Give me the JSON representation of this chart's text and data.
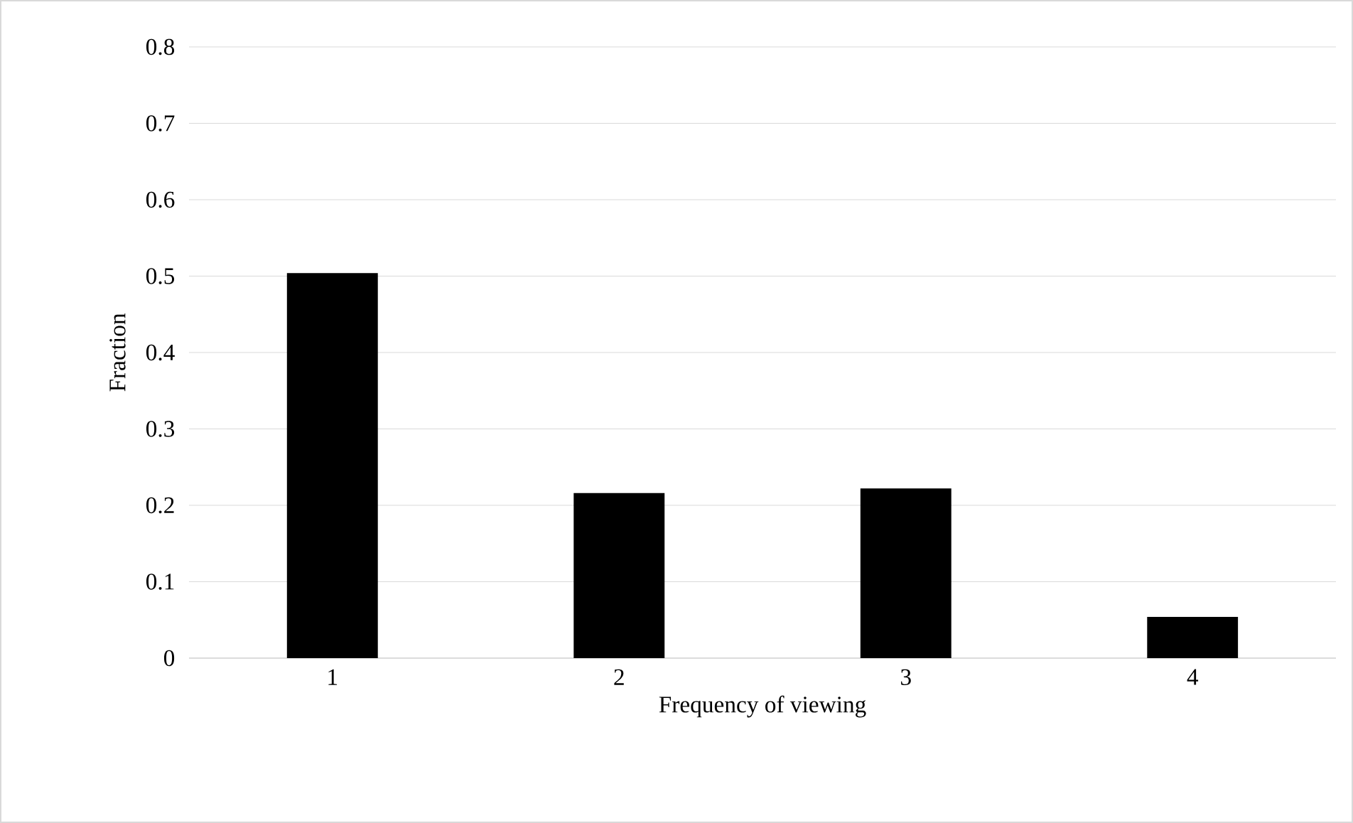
{
  "chart_data": {
    "type": "bar",
    "xlabel": "Frequency of viewing",
    "ylabel": "Fraction",
    "categories": [
      "1",
      "2",
      "3",
      "4"
    ],
    "values": [
      0.504,
      0.216,
      0.222,
      0.054
    ],
    "color": "#000000",
    "ylim": [
      0,
      0.8
    ],
    "yticks": [
      0,
      0.1,
      0.2,
      0.3,
      0.4,
      0.5,
      0.6,
      0.7,
      0.8
    ],
    "grid": "y"
  }
}
